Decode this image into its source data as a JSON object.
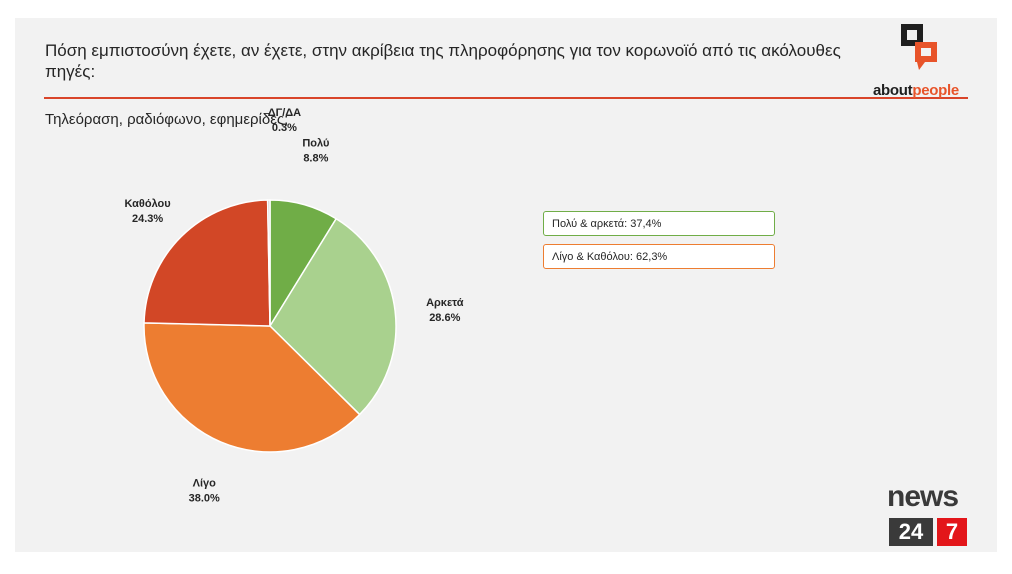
{
  "header": {
    "title": "Πόση εμπιστοσύνη έχετε, αν έχετε, στην ακρίβεια της πληροφόρησης για τον κορωνοϊό από τις ακόλουθες πηγές:",
    "subtitle": "Τηλεόραση, ραδιόφωνο, εφημερίδες;"
  },
  "logos": {
    "about_part1": "about",
    "about_part2": "people",
    "news_word": "news",
    "news_num1": "24",
    "news_num2": "7"
  },
  "callouts": {
    "positive": "Πολύ & αρκετά: 37,4%",
    "negative": "Λίγο & Καθόλου: 62,3%"
  },
  "colors": {
    "accent_rule": "#d9452a",
    "callout_positive_border": "#70ad47",
    "callout_negative_border": "#ed7d31"
  },
  "chart_data": {
    "type": "pie",
    "title": "",
    "slices": [
      {
        "label": "Πολύ",
        "value": 8.8,
        "display": "8.8%",
        "color": "#70ad47"
      },
      {
        "label": "Αρκετά",
        "value": 28.6,
        "display": "28.6%",
        "color": "#a9d18e"
      },
      {
        "label": "Λίγο",
        "value": 38.0,
        "display": "38.0%",
        "color": "#ed7d31"
      },
      {
        "label": "Καθόλου",
        "value": 24.3,
        "display": "24.3%",
        "color": "#d24726"
      },
      {
        "label": "ΔΓ/ΔΑ",
        "value": 0.3,
        "display": "0.3%",
        "color": "#c9c9c9"
      }
    ]
  }
}
